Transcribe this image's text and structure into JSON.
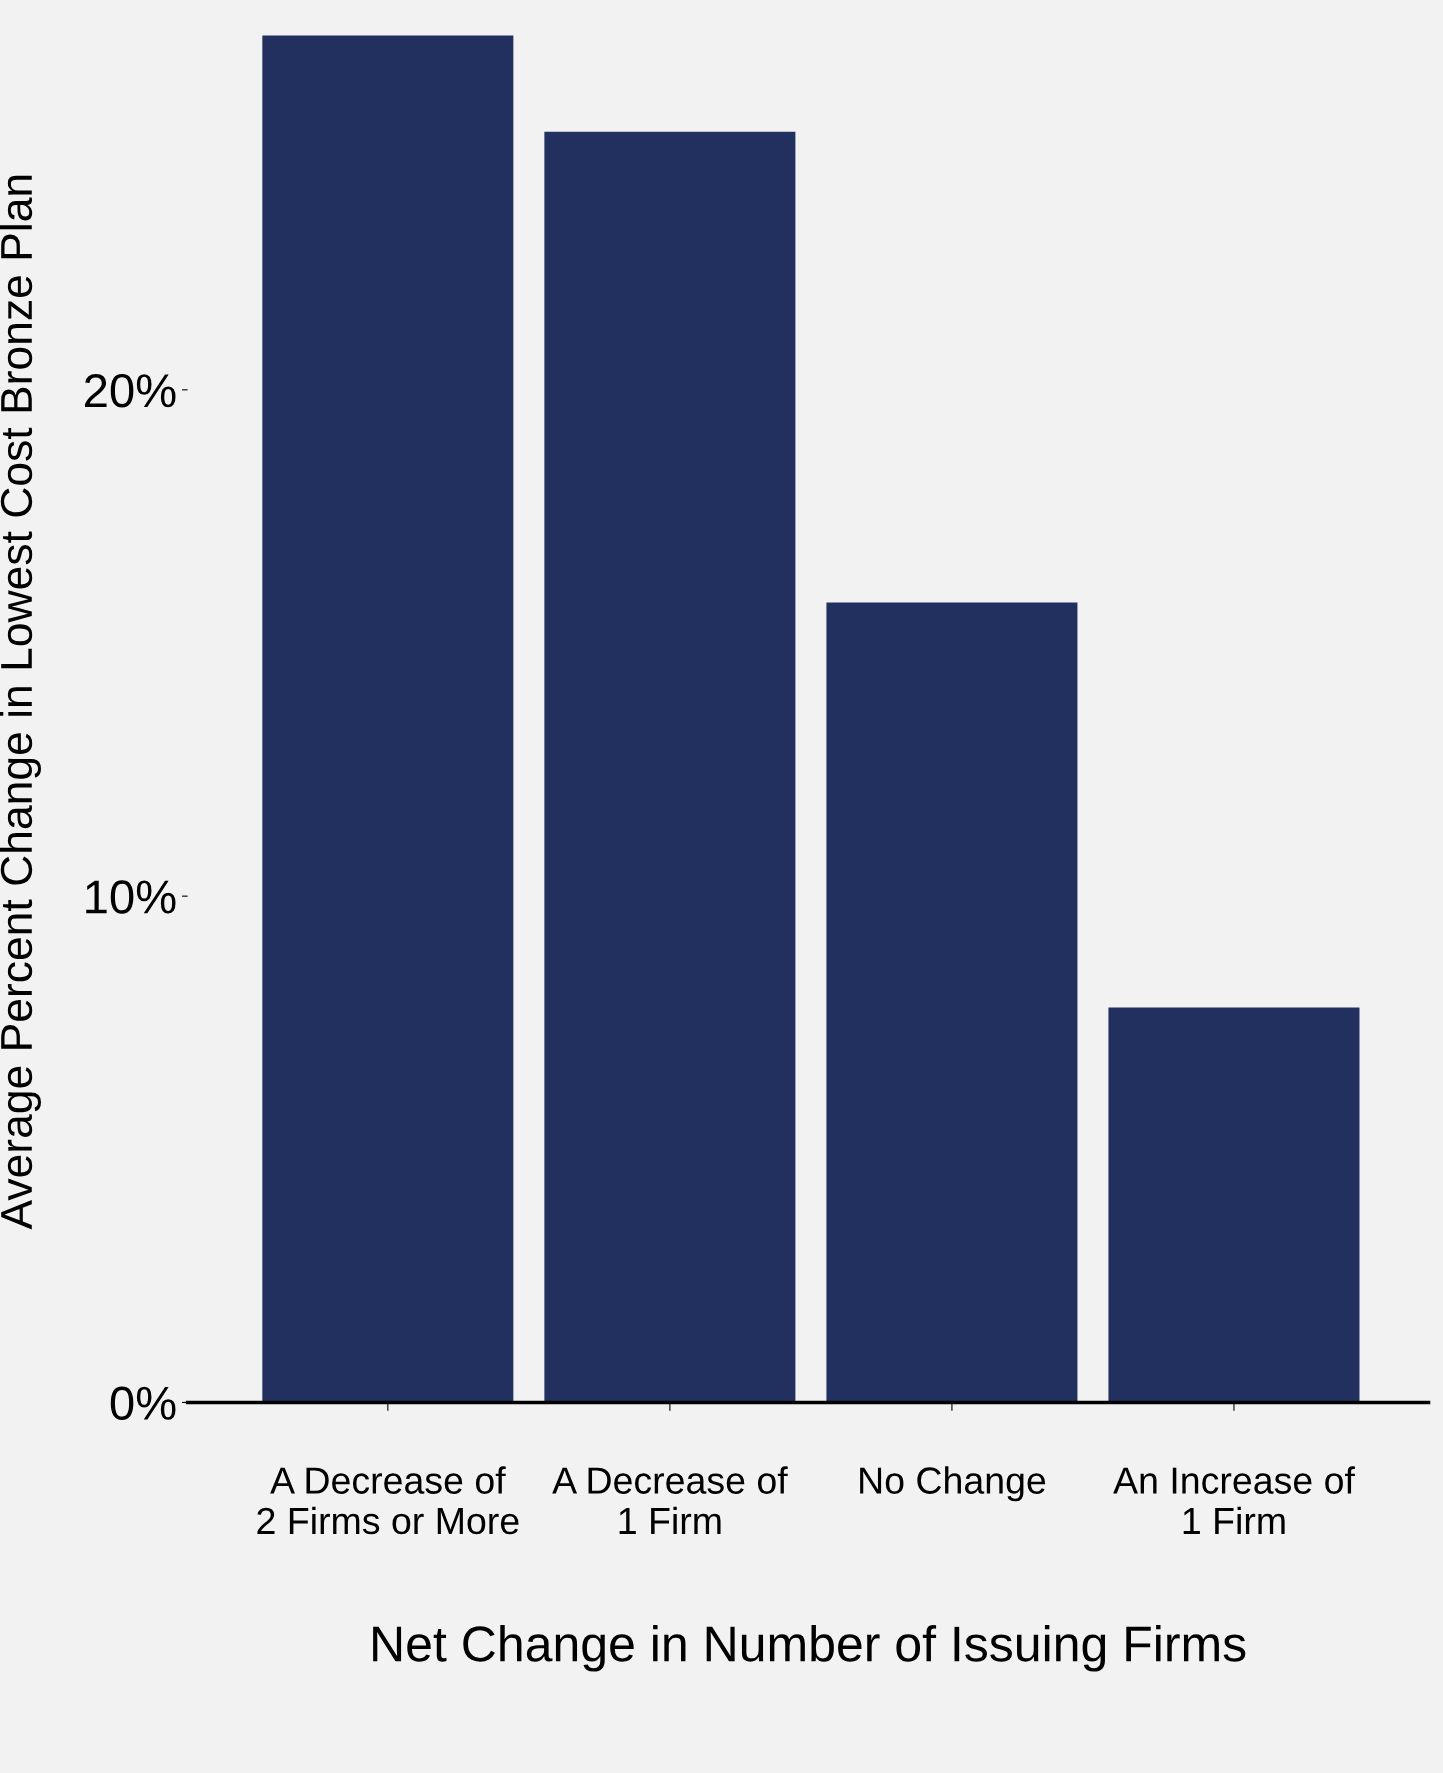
{
  "chart_data": {
    "type": "bar",
    "xlabel": "Net Change in Number of Issuing Firms",
    "ylabel": "Average Percent Change in Lowest Cost Bronze Plan",
    "categories": [
      "A Decrease of\n2 Firms or More",
      "A Decrease of\n1 Firm",
      "No Change",
      "An Increase of\n1 Firm"
    ],
    "values": [
      27.0,
      25.1,
      15.8,
      7.8
    ],
    "color": "#22305f",
    "ylim": [
      0,
      27.7
    ],
    "yticks": [
      {
        "value": 0,
        "label": "0%"
      },
      {
        "value": 10,
        "label": "10%"
      },
      {
        "value": 20,
        "label": "20%"
      }
    ],
    "grid": false
  }
}
